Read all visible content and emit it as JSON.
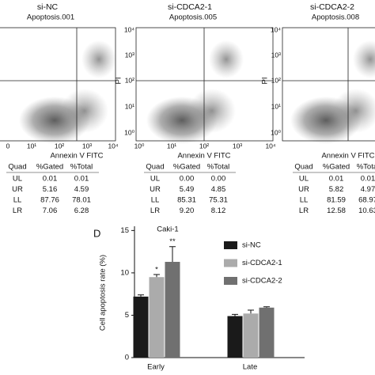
{
  "flow_panels": [
    {
      "title": "si-NC",
      "sample": "Apoptosis.001",
      "x_label": "Annexin V FITC",
      "x_tick_labels": [
        "0",
        "10¹",
        "10²",
        "10³",
        "10⁴"
      ],
      "table": {
        "header": [
          "Quad",
          "%Gated",
          "%Total"
        ],
        "rows": [
          [
            "UL",
            "0.01",
            "0.01"
          ],
          [
            "UR",
            "5.16",
            "4.59"
          ],
          [
            "LL",
            "87.76",
            "78.01"
          ],
          [
            "LR",
            "7.06",
            "6.28"
          ]
        ]
      }
    },
    {
      "title": "si-CDCA2-1",
      "sample": "Apoptosis.005",
      "x_label": "Annexin V FITC",
      "y_label": "PI",
      "x_tick_labels": [
        "10⁰",
        "10¹",
        "10²",
        "10³",
        "10⁴"
      ],
      "y_tick_labels": [
        "10⁰",
        "10¹",
        "10²",
        "10³",
        "10⁴"
      ],
      "table": {
        "header": [
          "Quad",
          "%Gated",
          "%Total"
        ],
        "rows": [
          [
            "UL",
            "0.00",
            "0.00"
          ],
          [
            "UR",
            "5.49",
            "4.85"
          ],
          [
            "LL",
            "85.31",
            "75.31"
          ],
          [
            "LR",
            "9.20",
            "8.12"
          ]
        ]
      }
    },
    {
      "title": "si-CDCA2-2",
      "sample": "Apoptosis.008",
      "x_label": "Annexin V FITC",
      "y_label": "PI",
      "y_tick_labels": [
        "10⁰",
        "10¹",
        "10²",
        "10³",
        "10⁴"
      ],
      "table": {
        "header": [
          "Quad",
          "%Gated",
          "%Total"
        ],
        "rows": [
          [
            "UL",
            "0.01",
            "0.01"
          ],
          [
            "UR",
            "5.82",
            "4.97"
          ],
          [
            "LL",
            "81.59",
            "68.97"
          ],
          [
            "LR",
            "12.58",
            "10.63"
          ]
        ]
      }
    }
  ],
  "chart_data": {
    "type": "bar",
    "panel_letter": "D",
    "title": "Caki-1",
    "y_label": "Cell apoptosis rate (%)",
    "categories": [
      "Early",
      "Late"
    ],
    "series": [
      {
        "name": "si-NC",
        "color": "#1a1a1a",
        "values": [
          7.2,
          4.9
        ],
        "errors": [
          0.2,
          0.2
        ]
      },
      {
        "name": "si-CDCA2-1",
        "color": "#ababab",
        "values": [
          9.5,
          5.2
        ],
        "errors": [
          0.3,
          0.4
        ],
        "significance": [
          "*",
          null
        ]
      },
      {
        "name": "si-CDCA2-2",
        "color": "#707070",
        "values": [
          11.3,
          5.9
        ],
        "errors": [
          1.8,
          0.1
        ],
        "significance": [
          "**",
          null
        ]
      }
    ],
    "ylim": [
      0,
      15.5
    ],
    "yticks": [
      0,
      5,
      10,
      15
    ]
  }
}
